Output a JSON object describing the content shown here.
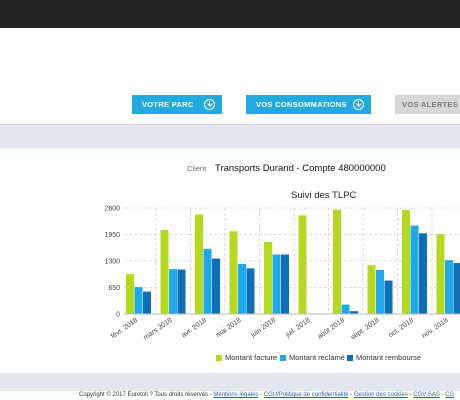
{
  "nav": {
    "parc_label": "VOTRE PARC",
    "conso_label": "VOS CONSOMMATIONS",
    "alertes_label": "VOS ALERTES"
  },
  "client": {
    "label": "Client",
    "value": "Transports Durand - Compte 480000000"
  },
  "footer": {
    "copyright": "Copyright © 2017 Eurotoll ? Tous droits réservés - ",
    "links": [
      "Mentions légales",
      "CGU/Politique de confidentialité",
      "Gestion des cookies",
      "CGV SAS",
      "CG"
    ]
  },
  "chart_data": {
    "type": "bar",
    "title": "Suivi des TLPC",
    "categories": [
      "févr. 2018",
      "mars 2018",
      "avr. 2018",
      "mai 2018",
      "juin 2018",
      "juil. 2018",
      "août 2018",
      "sept. 2018",
      "oct. 2018",
      "nov. 2018"
    ],
    "series": [
      {
        "name": "Montant facture",
        "color": "#b5d91c",
        "values": [
          980,
          2060,
          2440,
          2030,
          1770,
          2420,
          2560,
          1200,
          2550,
          1960
        ]
      },
      {
        "name": "Montant reclamé",
        "color": "#1fa8ec",
        "values": [
          660,
          1100,
          1600,
          1230,
          1460,
          0,
          230,
          1080,
          2170,
          1320
        ]
      },
      {
        "name": "Montant rembourse",
        "color": "#0d6fb7",
        "values": [
          550,
          1090,
          1360,
          1120,
          1460,
          0,
          70,
          820,
          1980,
          1250
        ]
      }
    ],
    "yticks": [
      0,
      650,
      1300,
      1950,
      2600
    ],
    "ylim": [
      0,
      2600
    ],
    "grid": true,
    "legend_position": "bottom"
  }
}
